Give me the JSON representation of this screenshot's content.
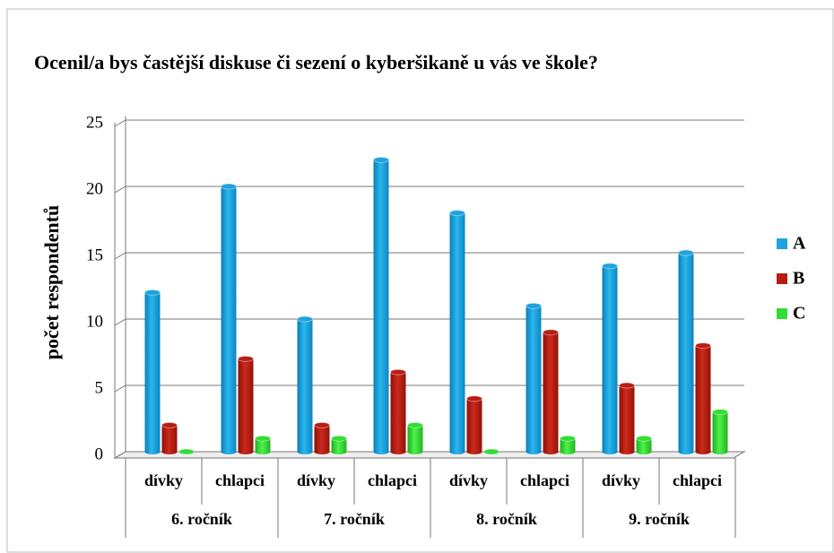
{
  "chart_data": {
    "type": "bar",
    "title": "Ocenil/a bys častější diskuse či sezení o kyberšikaně u vás ve škole?",
    "y_label": "počet respondentů",
    "categories": [
      "dívky",
      "chlapci",
      "dívky",
      "chlapci",
      "dívky",
      "chlapci",
      "dívky",
      "chlapci"
    ],
    "category_groups": [
      "6. ročník",
      "7. ročník",
      "8. ročník",
      "9. ročník"
    ],
    "series": [
      {
        "name": "A",
        "color": "#1ea3dc",
        "values": [
          12,
          20,
          10,
          22,
          18,
          11,
          14,
          15
        ]
      },
      {
        "name": "B",
        "color": "#b81d12",
        "values": [
          2,
          7,
          2,
          6,
          4,
          9,
          5,
          8
        ]
      },
      {
        "name": "C",
        "color": "#33dd33",
        "values": [
          0,
          1,
          1,
          2,
          0,
          1,
          1,
          3
        ]
      }
    ],
    "ylim": [
      0,
      25
    ],
    "yticks": [
      0,
      5,
      10,
      15,
      20,
      25
    ],
    "grid": true,
    "legend": "right"
  }
}
